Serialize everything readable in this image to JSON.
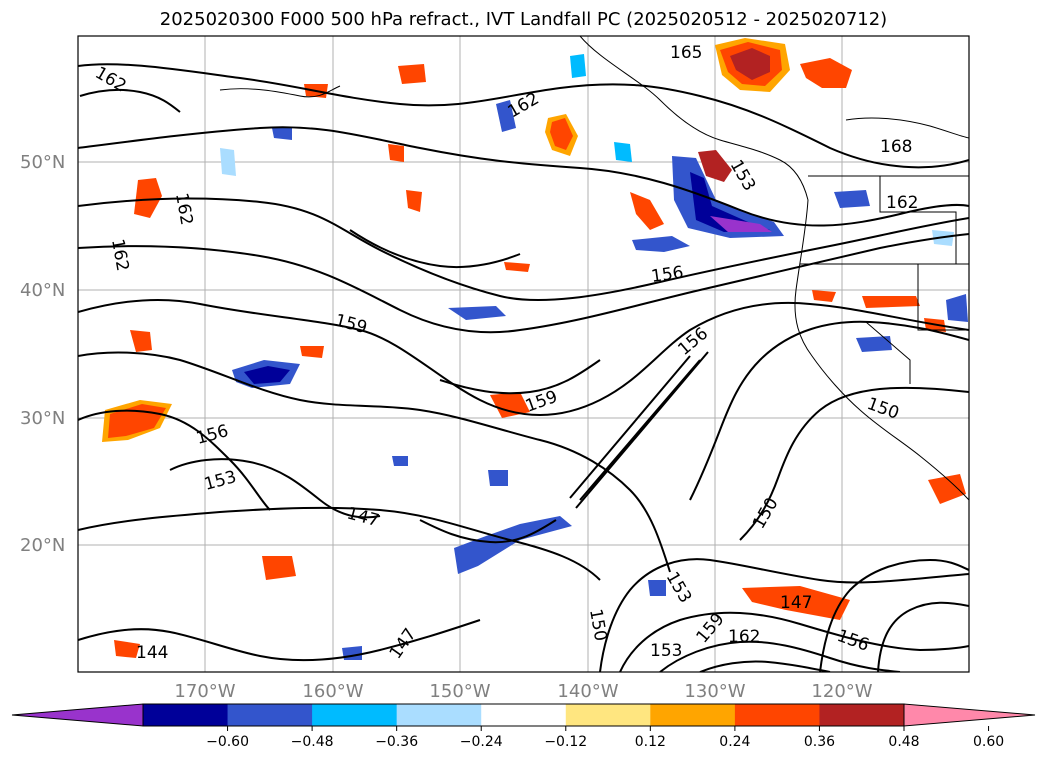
{
  "title": "2025020300 F000 500 hPa refract., IVT Landfall PC (2025020512 - 2025020712)",
  "lat_labels": [
    "50°N",
    "40°N",
    "30°N",
    "20°N"
  ],
  "lon_labels": [
    "170°W",
    "160°W",
    "150°W",
    "140°W",
    "130°W",
    "120°W"
  ],
  "colorbar": {
    "ticks": [
      "−0.60",
      "−0.48",
      "−0.36",
      "−0.24",
      "−0.12",
      "0.12",
      "0.24",
      "0.36",
      "0.48",
      "0.60"
    ],
    "colors": [
      "#9933CC",
      "#000099",
      "#3355CC",
      "#00BBFF",
      "#AADDFF",
      "#FFFFFF",
      "#FFE680",
      "#FFA500",
      "#FF4500",
      "#B22222",
      "#FF88AA"
    ]
  },
  "contour_labels": [
    "162",
    "162",
    "162",
    "162",
    "165",
    "168",
    "162",
    "156",
    "159",
    "159",
    "156",
    "156",
    "153",
    "147",
    "150",
    "150",
    "147",
    "144",
    "147",
    "150",
    "153",
    "153",
    "159",
    "162",
    "156",
    "153"
  ]
}
